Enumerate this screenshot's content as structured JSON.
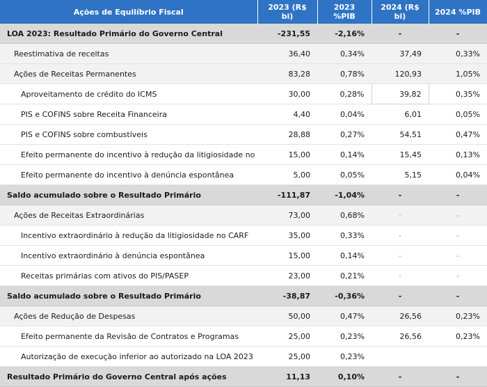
{
  "header": {
    "col0": "Ações de Equilíbrio Fiscal",
    "col1": "2023 (R$ bi)",
    "col2": "2023 %PIB",
    "col3": "2024 (R$ bi)",
    "col4": "2024 %PIB"
  },
  "rows": [
    {
      "label": "LOA 2023: Resultado Primário do Governo Central",
      "v2023": "-231,55",
      "p2023": "-2,16%",
      "v2024": "-",
      "p2024": "-"
    },
    {
      "label": "Reestimativa de receitas",
      "v2023": "36,40",
      "p2023": "0,34%",
      "v2024": "37,49",
      "p2024": "0,33%"
    },
    {
      "label": "Ações de Receitas Permanentes",
      "v2023": "83,28",
      "p2023": "0,78%",
      "v2024": "120,93",
      "p2024": "1,05%"
    },
    {
      "label": "Aproveitamento de crédito do ICMS",
      "v2023": "30,00",
      "p2023": "0,28%",
      "v2024": "39,82",
      "p2024": "0,35%"
    },
    {
      "label": "PIS e COFINS sobre Receita Financeira",
      "v2023": "4,40",
      "p2023": "0,04%",
      "v2024": "6,01",
      "p2024": "0,05%"
    },
    {
      "label": "PIS e COFINS sobre combustíveis",
      "v2023": "28,88",
      "p2023": "0,27%",
      "v2024": "54,51",
      "p2024": "0,47%"
    },
    {
      "label": "Efeito permanente do incentivo à redução da litigiosidade no CARF",
      "v2023": "15,00",
      "p2023": "0,14%",
      "v2024": "15,45",
      "p2024": "0,13%"
    },
    {
      "label": "Efeito permanente do incentivo à denúncia espontânea",
      "v2023": "5,00",
      "p2023": "0,05%",
      "v2024": "5,15",
      "p2024": "0,04%"
    },
    {
      "label": "Saldo acumulado sobre o Resultado Primário",
      "v2023": "-111,87",
      "p2023": "-1,04%",
      "v2024": "-",
      "p2024": "-"
    },
    {
      "label": "Ações de Receitas Extraordinárias",
      "v2023": "73,00",
      "p2023": "0,68%",
      "v2024": "-",
      "p2024": "-"
    },
    {
      "label": "Incentivo extraordinário à redução da litigiosidade no CARF",
      "v2023": "35,00",
      "p2023": "0,33%",
      "v2024": "-",
      "p2024": "-"
    },
    {
      "label": "Incentivo extraordinário à denúncia espontânea",
      "v2023": "15,00",
      "p2023": "0,14%",
      "v2024": "-",
      "p2024": "-"
    },
    {
      "label": "Receitas primárias com ativos do PIS/PASEP",
      "v2023": "23,00",
      "p2023": "0,21%",
      "v2024": "-",
      "p2024": "-"
    },
    {
      "label": "Saldo acumulado sobre o Resultado Primário",
      "v2023": "-38,87",
      "p2023": "-0,36%",
      "v2024": "-",
      "p2024": "-"
    },
    {
      "label": "Ações de Redução de Despesas",
      "v2023": "50,00",
      "p2023": "0,47%",
      "v2024": "26,56",
      "p2024": "0,23%"
    },
    {
      "label": "Efeito permanente da Revisão de Contratos e Programas",
      "v2023": "25,00",
      "p2023": "0,23%",
      "v2024": "26,56",
      "p2024": "0,23%"
    },
    {
      "label": "Autorização de execução inferior ao autorizado na LOA 2023",
      "v2023": "25,00",
      "p2023": "0,23%",
      "v2024": "",
      "p2024": ""
    },
    {
      "label": "Resultado Primário do Governo Central após ações",
      "v2023": "11,13",
      "p2023": "0,10%",
      "v2024": "-",
      "p2024": "-"
    }
  ]
}
